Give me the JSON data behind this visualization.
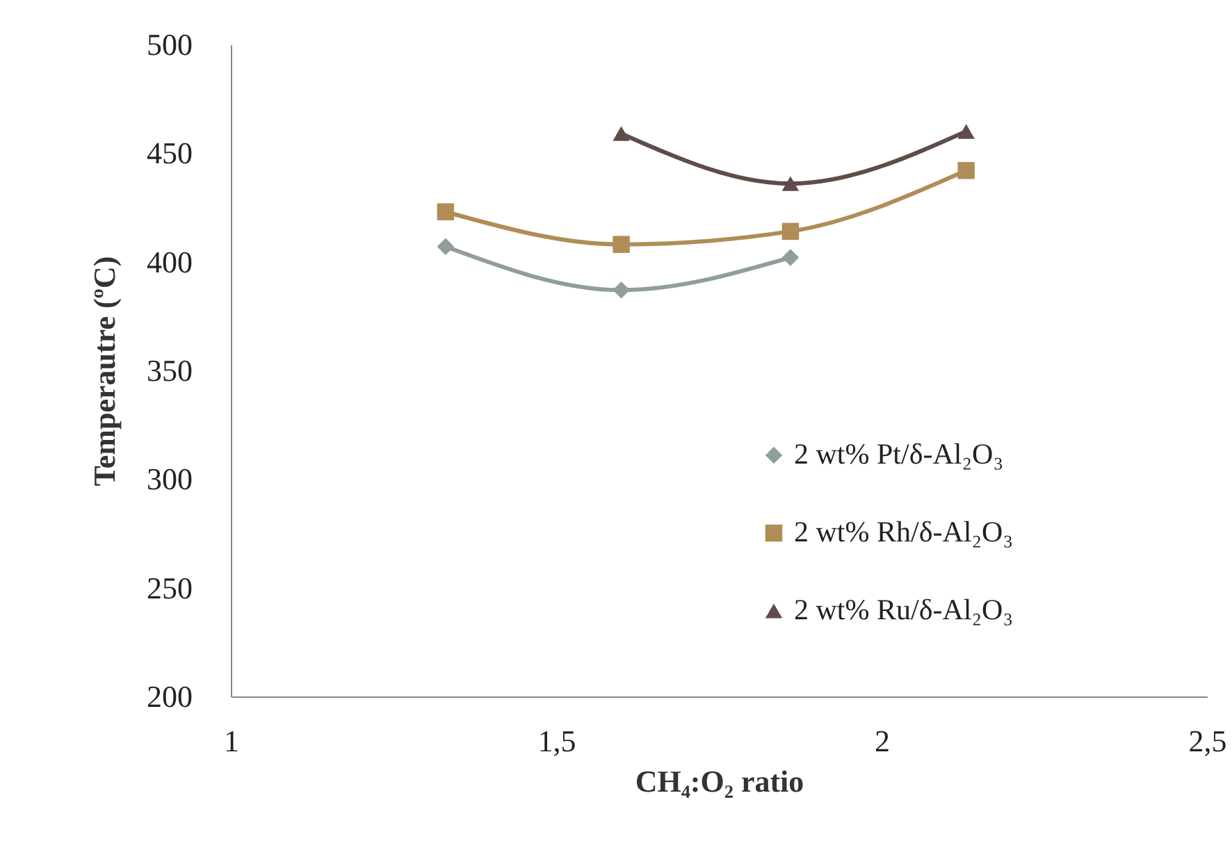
{
  "chart_data": {
    "type": "line",
    "xlabel": "CH₄:O₂ ratio",
    "ylabel": "Temperautre (ºC)",
    "xlim": [
      1,
      2.5
    ],
    "xticks": [
      1,
      {
        "value": 1.5,
        "label": "1,5"
      },
      2,
      {
        "value": 2.5,
        "label": "2,5"
      }
    ],
    "ylim": [
      200,
      500
    ],
    "yticks": [
      200,
      250,
      300,
      350,
      400,
      450,
      500
    ],
    "legend": "bottom right",
    "series": [
      {
        "name": "2 wt% Pt/δ-Al₂O₃",
        "color": "#8f9e9b",
        "marker": "diamond",
        "x": [
          1.33,
          1.6,
          1.86
        ],
        "values": [
          407,
          387,
          402
        ]
      },
      {
        "name": "2 wt% Rh/δ-Al₂O₃",
        "color": "#b08d57",
        "marker": "square",
        "x": [
          1.33,
          1.6,
          1.86,
          2.13
        ],
        "values": [
          423,
          408,
          414,
          442
        ]
      },
      {
        "name": "2 wt% Ru/δ-Al₂O₃",
        "color": "#5f4c48",
        "marker": "triangle",
        "x": [
          1.6,
          1.86,
          2.13
        ],
        "values": [
          459,
          436,
          460
        ]
      }
    ]
  }
}
